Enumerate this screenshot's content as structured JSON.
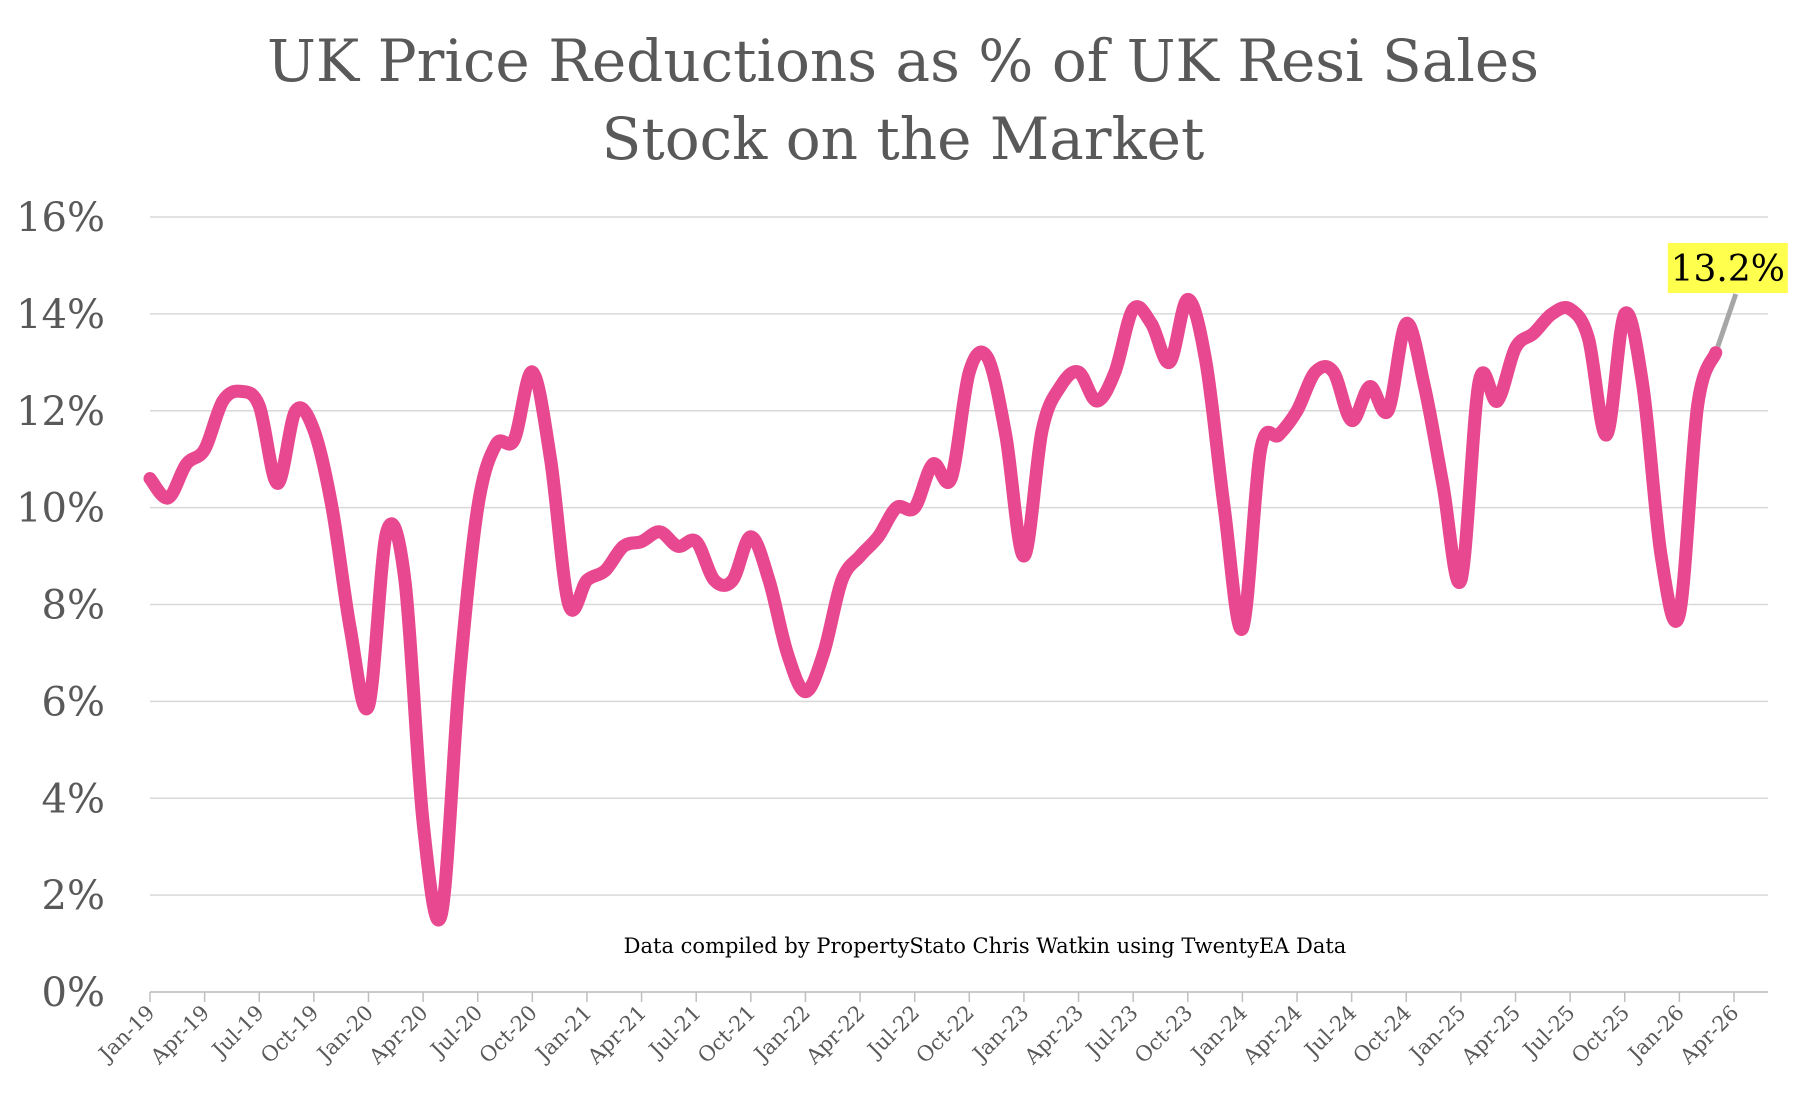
{
  "chart_data": {
    "type": "line",
    "title": "UK Price Reductions as % of UK Resi Sales Stock on the Market",
    "footnote": "Data compiled by PropertyStato Chris Watkin using TwentyEA Data",
    "categories": [
      "Jan-19",
      null,
      null,
      "Apr-19",
      null,
      null,
      "Jul-19",
      null,
      null,
      "Oct-19",
      null,
      null,
      "Jan-20",
      null,
      null,
      "Apr-20",
      null,
      null,
      "Jul-20",
      null,
      null,
      "Oct-20",
      null,
      null,
      "Jan-21",
      null,
      null,
      "Apr-21",
      null,
      null,
      "Jul-21",
      null,
      null,
      "Oct-21",
      null,
      null,
      "Jan-22",
      null,
      null,
      "Apr-22",
      null,
      null,
      "Jul-22",
      null,
      null,
      "Oct-22",
      null,
      null,
      "Jan-23",
      null,
      null,
      "Apr-23",
      null,
      null,
      "Jul-23",
      null,
      null,
      "Oct-23",
      null,
      null,
      "Jan-24",
      null,
      null,
      "Apr-24",
      null,
      null,
      "Jul-24",
      null,
      null,
      "Oct-24",
      null,
      null,
      "Jan-25",
      null,
      null,
      "Apr-25",
      null,
      null,
      "Jul-25",
      null,
      null,
      "Oct-25",
      null,
      null,
      "Jan-26",
      null,
      null,
      "Apr-26"
    ],
    "series": [
      {
        "name": "Price reductions",
        "color": "#e8488f",
        "values": [
          10.6,
          10.2,
          10.9,
          11.2,
          12.2,
          12.4,
          12.1,
          10.5,
          12.0,
          11.6,
          10.0,
          7.5,
          5.9,
          9.5,
          8.5,
          3.5,
          1.6,
          6.5,
          10.0,
          11.3,
          11.4,
          12.8,
          11.0,
          8.0,
          8.5,
          8.7,
          9.2,
          9.3,
          9.5,
          9.2,
          9.3,
          8.5,
          8.5,
          9.4,
          8.5,
          7.0,
          6.2,
          7.0,
          8.5,
          9.0,
          9.4,
          10.0,
          10.0,
          10.9,
          10.6,
          12.8,
          13.1,
          11.5,
          9.0,
          11.6,
          12.5,
          12.8,
          12.2,
          12.8,
          14.1,
          13.8,
          13.0,
          14.3,
          13.0,
          10.0,
          7.5,
          11.2,
          11.5,
          12.0,
          12.8,
          12.8,
          11.8,
          12.5,
          12.0,
          13.8,
          12.5,
          10.5,
          8.5,
          12.6,
          12.2,
          13.3,
          13.6,
          14.0,
          14.1,
          13.5,
          11.5,
          14.0,
          12.5,
          9.0,
          7.8,
          12.1,
          13.2,
          null
        ],
        "value_labels": [
          null,
          null,
          null,
          null,
          null,
          null,
          null,
          null,
          null,
          null,
          null,
          null,
          null,
          null,
          null,
          null,
          null,
          null,
          null,
          null,
          null,
          null,
          null,
          null,
          null,
          null,
          null,
          null,
          null,
          null,
          null,
          null,
          null,
          null,
          null,
          null,
          null,
          null,
          null,
          null,
          null,
          null,
          null,
          null,
          null,
          null,
          null,
          null,
          null,
          null,
          null,
          null,
          null,
          null,
          null,
          null,
          null,
          null,
          null,
          null,
          null,
          null,
          null,
          null,
          null,
          null,
          null,
          null,
          null,
          null,
          null,
          null,
          null,
          null,
          null,
          null,
          null,
          null,
          null,
          null,
          null,
          null,
          null,
          null,
          null,
          null,
          "13.2%",
          null
        ]
      }
    ],
    "ylim": [
      0,
      16
    ],
    "yticks": [
      {
        "value": 0,
        "label": "0%"
      },
      {
        "value": 2,
        "label": "2%"
      },
      {
        "value": 4,
        "label": "4%"
      },
      {
        "value": 6,
        "label": "6%"
      },
      {
        "value": 8,
        "label": "8%"
      },
      {
        "value": 10,
        "label": "10%"
      },
      {
        "value": 12,
        "label": "12%"
      },
      {
        "value": 14,
        "label": "14%"
      },
      {
        "value": 16,
        "label": "16%"
      }
    ],
    "grid": true
  }
}
